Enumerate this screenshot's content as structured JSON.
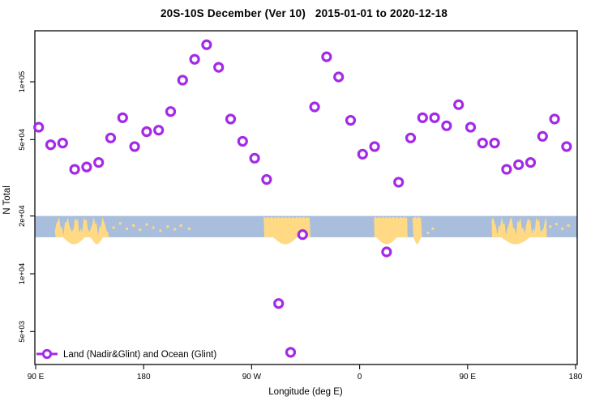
{
  "title": "20S-10S December (Ver 10)   2015-01-01 to 2020-12-18",
  "x_axis": {
    "label": "Longitude (deg E)",
    "range": [
      90,
      540
    ],
    "ticks": [
      {
        "lon": 90,
        "label": "90 E"
      },
      {
        "lon": 180,
        "label": "180"
      },
      {
        "lon": 270,
        "label": "90 W"
      },
      {
        "lon": 360,
        "label": "0"
      },
      {
        "lon": 450,
        "label": "90 E"
      },
      {
        "lon": 540,
        "label": "180"
      }
    ]
  },
  "y_axis": {
    "label": "N Total",
    "scale": "log",
    "ticks": [
      {
        "value": 100000,
        "label": "1e+05"
      },
      {
        "value": 50000,
        "label": "5e+04"
      },
      {
        "value": 20000,
        "label": "2e+04"
      },
      {
        "value": 10000,
        "label": "1e+04"
      },
      {
        "value": 5000,
        "label": "5e+03"
      }
    ]
  },
  "legend": {
    "label": "Land (Nadir&Glint) and Ocean (Glint)"
  },
  "colors": {
    "series": "#A429E8",
    "land": "#FFD983",
    "ocean": "#A8BEDC",
    "axis": "#1a1a1a"
  },
  "map_band": {
    "top_value": 20000,
    "bottom_value": 15500,
    "segments": [
      {
        "from": 106,
        "to": 151,
        "flat": false,
        "under": [
          [
            113,
            131
          ],
          [
            136,
            146
          ]
        ]
      },
      {
        "from": 280,
        "to": 319,
        "flat": true,
        "under": [
          [
            288,
            308
          ]
        ]
      },
      {
        "from": 372,
        "to": 400,
        "flat": true,
        "under": [
          [
            374,
            391
          ]
        ]
      },
      {
        "from": 404,
        "to": 412,
        "flat": true,
        "under": [
          [
            405,
            411
          ]
        ]
      },
      {
        "from": 470,
        "to": 516,
        "flat": false,
        "under": [
          [
            478,
            502
          ]
        ]
      }
    ],
    "island_dots": [
      {
        "lon": 155,
        "f": 0.55
      },
      {
        "lon": 160.5,
        "f": 0.35
      },
      {
        "lon": 166,
        "f": 0.6
      },
      {
        "lon": 171.5,
        "f": 0.45
      },
      {
        "lon": 177,
        "f": 0.65
      },
      {
        "lon": 182.5,
        "f": 0.4
      },
      {
        "lon": 188,
        "f": 0.55
      },
      {
        "lon": 194,
        "f": 0.7
      },
      {
        "lon": 200,
        "f": 0.5
      },
      {
        "lon": 206,
        "f": 0.62
      },
      {
        "lon": 211,
        "f": 0.45
      },
      {
        "lon": 218,
        "f": 0.6
      },
      {
        "lon": 417,
        "f": 0.8
      },
      {
        "lon": 421,
        "f": 0.6
      },
      {
        "lon": 519,
        "f": 0.5
      },
      {
        "lon": 524,
        "f": 0.38
      },
      {
        "lon": 529,
        "f": 0.6
      },
      {
        "lon": 534,
        "f": 0.45
      }
    ]
  },
  "chart_data": {
    "type": "scatter",
    "title": "20S-10S December (Ver 10)   2015-01-01 to 2020-12-18",
    "xlabel": "Longitude (deg E)",
    "ylabel": "N Total",
    "xlim": [
      90,
      540
    ],
    "ylog": true,
    "ylim": [
      3500,
      220000
    ],
    "legend_position": "bottom-left",
    "series": [
      {
        "name": "Land (Nadir&Glint) and Ocean (Glint)",
        "marker": "open-circle",
        "color": "#A429E8",
        "points": [
          [
            92.5,
            58000
          ],
          [
            102.5,
            47000
          ],
          [
            112.5,
            48000
          ],
          [
            122.5,
            35000
          ],
          [
            132.5,
            36000
          ],
          [
            142.5,
            38000
          ],
          [
            152.5,
            51000
          ],
          [
            162.5,
            65000
          ],
          [
            172.5,
            46000
          ],
          [
            182.5,
            55000
          ],
          [
            192.5,
            56000
          ],
          [
            202.5,
            70000
          ],
          [
            212.5,
            102000
          ],
          [
            222.5,
            131000
          ],
          [
            232.5,
            156000
          ],
          [
            242.5,
            119000
          ],
          [
            252.5,
            64000
          ],
          [
            262.5,
            49000
          ],
          [
            272.5,
            40000
          ],
          [
            282.5,
            31000
          ],
          [
            292.5,
            7000
          ],
          [
            302.5,
            3900
          ],
          [
            312.5,
            16000
          ],
          [
            322.5,
            74000
          ],
          [
            332.5,
            135000
          ],
          [
            342.5,
            106000
          ],
          [
            352.5,
            63000
          ],
          [
            362.5,
            42000
          ],
          [
            372.5,
            46000
          ],
          [
            382.5,
            13000
          ],
          [
            392.5,
            30000
          ],
          [
            402.5,
            51000
          ],
          [
            412.5,
            65000
          ],
          [
            422.5,
            65000
          ],
          [
            432.5,
            59000
          ],
          [
            442.5,
            76000
          ],
          [
            452.5,
            58000
          ],
          [
            462.5,
            48000
          ],
          [
            472.5,
            48000
          ],
          [
            482.5,
            35000
          ],
          [
            492.5,
            37000
          ],
          [
            502.5,
            38000
          ],
          [
            512.5,
            52000
          ],
          [
            522.5,
            64000
          ],
          [
            532.5,
            46000
          ]
        ]
      }
    ]
  }
}
